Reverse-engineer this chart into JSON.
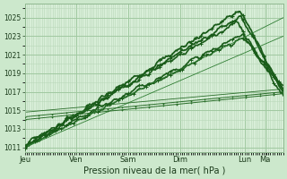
{
  "xlabel": "Pression niveau de la mer( hPa )",
  "bg_color": "#cce8cc",
  "plot_bg_color": "#d8eed8",
  "grid_color_minor": "#b8d8b8",
  "grid_color_major": "#a0c8a0",
  "ylim": [
    1010.5,
    1026.5
  ],
  "yticks": [
    1011,
    1013,
    1015,
    1017,
    1019,
    1021,
    1023,
    1025
  ],
  "day_labels": [
    "Jeu",
    "Ven",
    "Sam",
    "Dim",
    "Lun",
    "Ma"
  ],
  "day_positions": [
    0.0,
    0.2,
    0.4,
    0.6,
    0.85,
    0.93
  ],
  "line_color_dark": "#1a5c1a",
  "line_color_thin": "#2e7d32",
  "n_points": 300
}
